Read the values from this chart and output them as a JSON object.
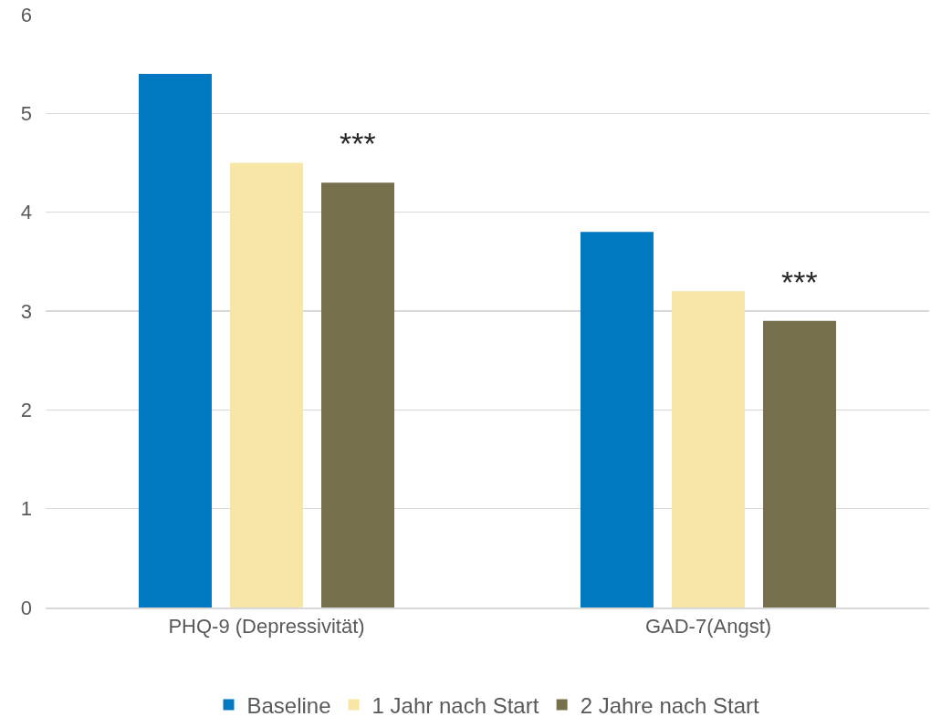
{
  "chart_data": {
    "type": "bar",
    "categories": [
      "PHQ-9 (Depressivität)",
      "GAD-7(Angst)"
    ],
    "series": [
      {
        "name": "Baseline",
        "color": "#0079c1",
        "values": [
          5.4,
          3.8
        ]
      },
      {
        "name": "1 Jahr nach Start",
        "color": "#f7e6a6",
        "values": [
          4.5,
          3.2
        ]
      },
      {
        "name": "2 Jahre nach Start",
        "color": "#76704d",
        "values": [
          4.3,
          2.9
        ]
      }
    ],
    "ylim": [
      0,
      6
    ],
    "yticks": [
      0,
      1,
      2,
      3,
      4,
      5,
      6
    ],
    "grid": "y",
    "legend": "bottom",
    "annotations": [
      "***",
      "***"
    ]
  }
}
